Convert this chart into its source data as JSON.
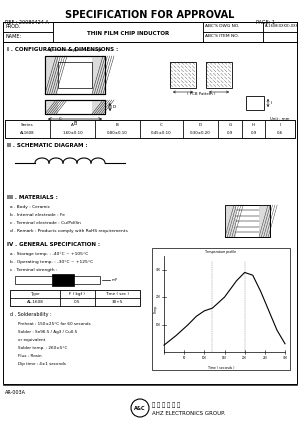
{
  "title": "SPECIFICATION FOR APPROVAL",
  "ref": "REF : 20080424-A",
  "page": "PAGE: 1",
  "prod": "PROD.",
  "name_label": "NAME:",
  "product_name": "THIN FILM CHIP INDUCTOR",
  "abcs_dwg_no_label": "ABC'S DWG NO.",
  "abcs_dwg_no_val": "AL1608(XXXX)-XXX",
  "abcs_item_label": "ABC'S ITEM NO.",
  "section1": "I . CONFIGURATION & DIMENSIONS :",
  "section2": "II . SCHEMATIC DIAGRAM :",
  "section3": "III . MATERIALS :",
  "mat_a": "a . Body : Ceramic",
  "mat_b": "b . Internal electrode : Fe",
  "mat_c": "c . Terminal electrode : Cu/Pd/Sn",
  "mat_d": "d . Remark : Products comply with RoHS requirements",
  "section4": "IV . GENERAL SPECIFICATION :",
  "spec_a": "a . Storage temp. : -40°C ~ +105°C",
  "spec_b": "b . Operating temp. : -30°C ~ +125°C",
  "spec_c": "c . Terminal strength :",
  "table_series": "Series",
  "table_a": "A",
  "table_b": "B",
  "table_c": "C",
  "table_d": "D",
  "table_g": "G",
  "table_h": "H",
  "table_i": "I",
  "table_row_series": "AL1608",
  "table_row_a": "1.60±0.10",
  "table_row_b": "0.80±0.10",
  "table_row_c": "0.45±0.10",
  "table_row_d": "0.30±0.20",
  "table_row_g": "0.9",
  "table_row_h": "0.9",
  "table_row_i": "0.6",
  "unit_note": "Unit : mm",
  "pcb_note": "( PCB Pattern )",
  "term_type": "AL-1608",
  "term_f": "0.5",
  "term_time": "30+5",
  "term_type_label": "Type",
  "term_f_label": "F ( kgf )",
  "term_time_label": "Time ( sec )",
  "solder_label": "d . Solderability :",
  "solder_text1": "Preheat : 150±25°C for 60 seconds",
  "solder_text2": "Solder : Sn96.5 / Ag3 / Cu0.5",
  "solder_text3": "or equivalent",
  "solder_text4": "Solder temp. : 260±5°C",
  "solder_text5": "Flux : Rosin",
  "solder_text6": "Dip time : 4±1 seconds",
  "footer_left": "AR-003A",
  "footer_company": "AHZ ELECTRONICS GROUP.",
  "bg_color": "#ffffff",
  "border_color": "#000000",
  "text_color": "#333333",
  "light_gray": "#cccccc",
  "header_bg": "#f0f0f0"
}
